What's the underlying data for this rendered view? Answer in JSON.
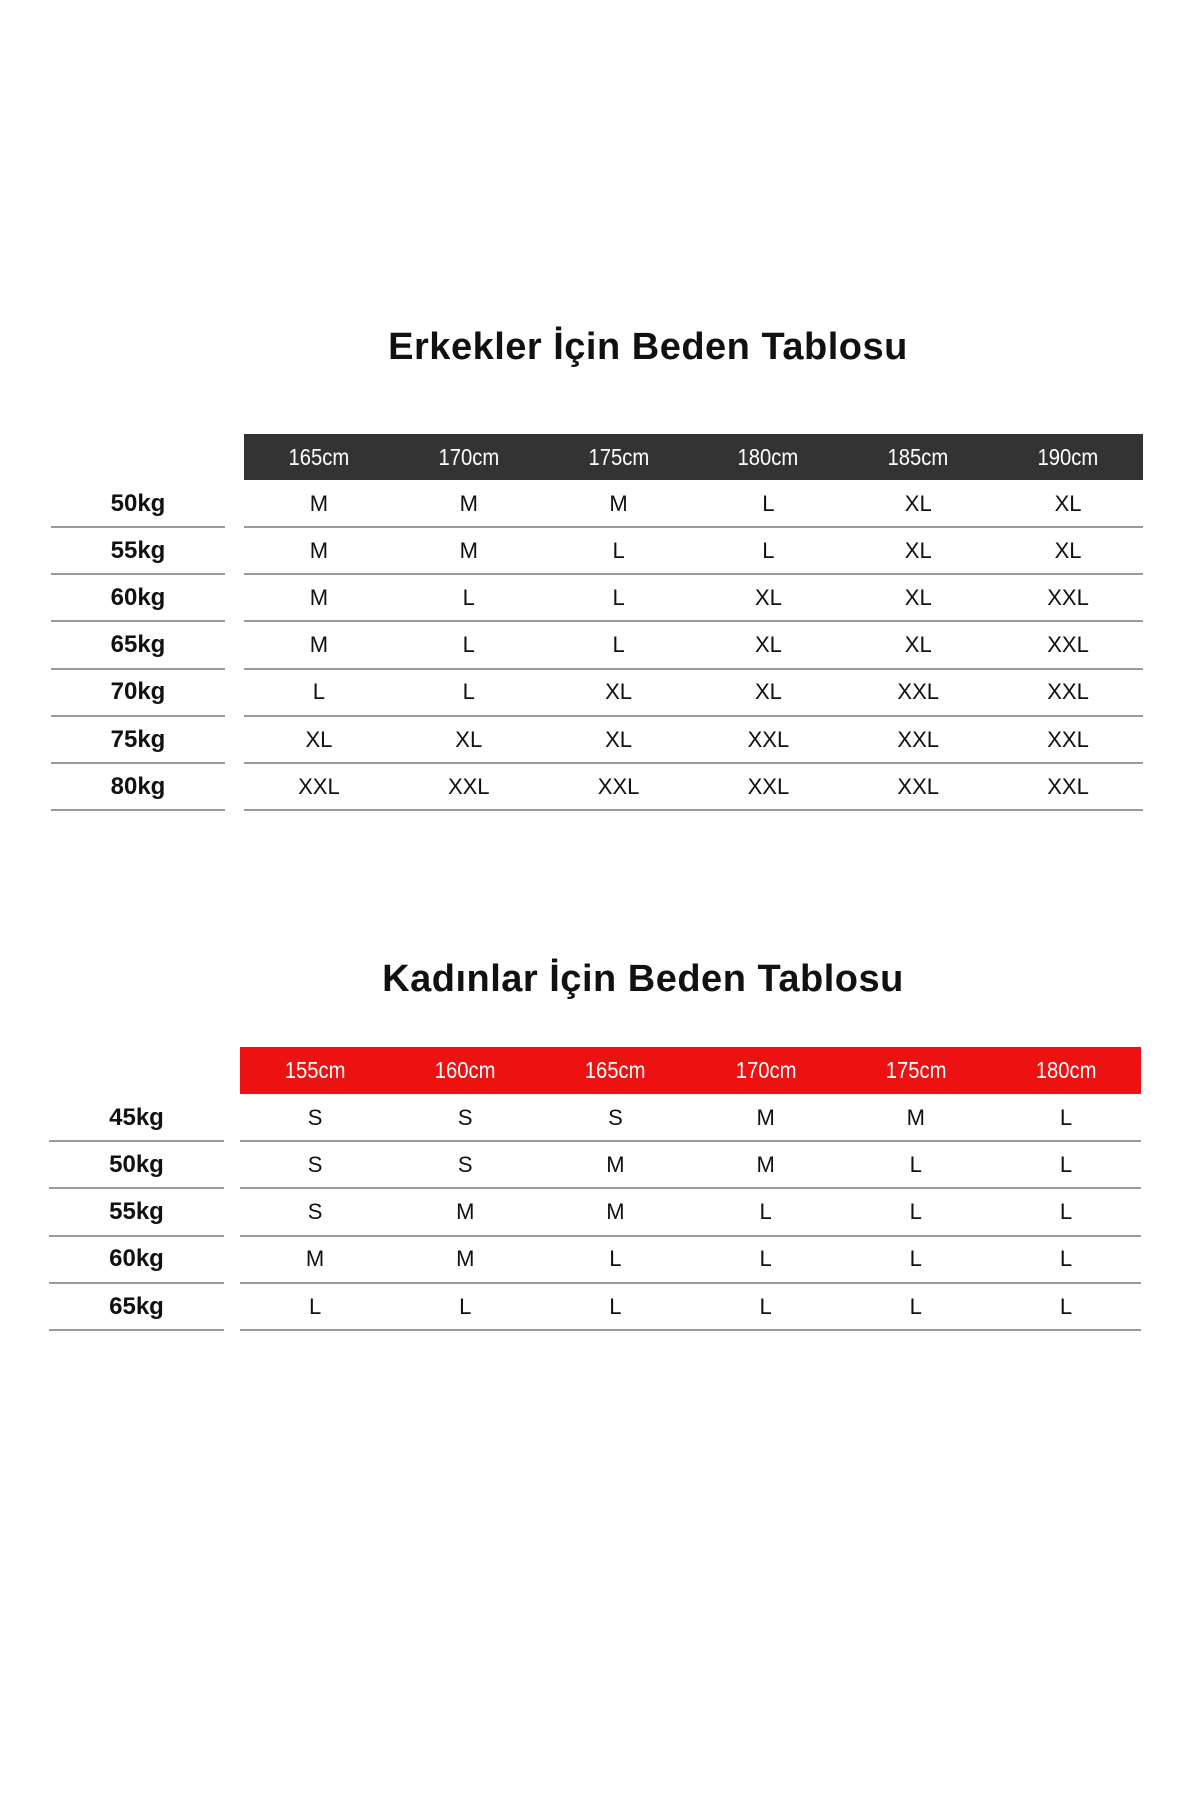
{
  "men": {
    "title": "Erkekler İçin Beden Tablosu",
    "header_color": "#333333",
    "heights": [
      "165cm",
      "170cm",
      "175cm",
      "180cm",
      "185cm",
      "190cm"
    ],
    "rows": [
      {
        "weight": "50kg",
        "sizes": [
          "M",
          "M",
          "M",
          "L",
          "XL",
          "XL"
        ]
      },
      {
        "weight": "55kg",
        "sizes": [
          "M",
          "M",
          "L",
          "L",
          "XL",
          "XL"
        ]
      },
      {
        "weight": "60kg",
        "sizes": [
          "M",
          "L",
          "L",
          "XL",
          "XL",
          "XXL"
        ]
      },
      {
        "weight": "65kg",
        "sizes": [
          "M",
          "L",
          "L",
          "XL",
          "XL",
          "XXL"
        ]
      },
      {
        "weight": "70kg",
        "sizes": [
          "L",
          "L",
          "XL",
          "XL",
          "XXL",
          "XXL"
        ]
      },
      {
        "weight": "75kg",
        "sizes": [
          "XL",
          "XL",
          "XL",
          "XXL",
          "XXL",
          "XXL"
        ]
      },
      {
        "weight": "80kg",
        "sizes": [
          "XXL",
          "XXL",
          "XXL",
          "XXL",
          "XXL",
          "XXL"
        ]
      }
    ]
  },
  "women": {
    "title": "Kadınlar İçin Beden Tablosu",
    "header_color": "#ee1111",
    "heights": [
      "155cm",
      "160cm",
      "165cm",
      "170cm",
      "175cm",
      "180cm"
    ],
    "rows": [
      {
        "weight": "45kg",
        "sizes": [
          "S",
          "S",
          "S",
          "M",
          "M",
          "L"
        ]
      },
      {
        "weight": "50kg",
        "sizes": [
          "S",
          "S",
          "M",
          "M",
          "L",
          "L"
        ]
      },
      {
        "weight": "55kg",
        "sizes": [
          "S",
          "M",
          "M",
          "L",
          "L",
          "L"
        ]
      },
      {
        "weight": "60kg",
        "sizes": [
          "M",
          "M",
          "L",
          "L",
          "L",
          "L"
        ]
      },
      {
        "weight": "65kg",
        "sizes": [
          "L",
          "L",
          "L",
          "L",
          "L",
          "L"
        ]
      }
    ]
  }
}
